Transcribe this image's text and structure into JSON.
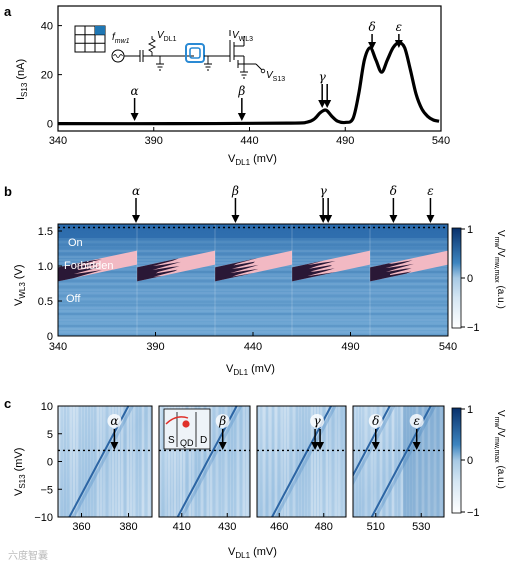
{
  "panels": {
    "a": "a",
    "b": "b",
    "c": "c"
  },
  "panel_a": {
    "chart_data": {
      "type": "line",
      "xlabel": "V_DL1 (mV)",
      "ylabel": "I_S13 (nA)",
      "xlim": [
        340,
        540
      ],
      "ylim": [
        -3,
        48
      ],
      "xticks": [
        "340",
        "390",
        "440",
        "490",
        "540"
      ],
      "yticks": [
        "0",
        "20",
        "40"
      ],
      "x": [
        340,
        400,
        460,
        470,
        474,
        477,
        480,
        483,
        486,
        490,
        494,
        497,
        500,
        503,
        506,
        509,
        512,
        515,
        518,
        521,
        524,
        527,
        530,
        533,
        536,
        539
      ],
      "y": [
        0,
        0,
        0.2,
        0.6,
        2,
        4.5,
        5.5,
        3,
        1,
        0.5,
        2,
        12,
        26,
        31,
        26,
        21,
        26,
        31,
        33,
        31,
        22,
        12,
        6,
        3,
        1.5,
        1
      ],
      "peaks": [
        {
          "label": "α",
          "x": 380
        },
        {
          "label": "β",
          "x": 436
        },
        {
          "label": "γ",
          "x": 479
        },
        {
          "label": "δ",
          "x": 504
        },
        {
          "label": "ε",
          "x": 518
        }
      ]
    },
    "circuit": {
      "f_label": "f",
      "f_sub": "mw1",
      "vdl_label": "V",
      "vdl_sub": "DL1",
      "vwl_label": "V",
      "vwl_sub": "WL3",
      "vs_label": "V",
      "vs_sub": "S13"
    }
  },
  "panel_b": {
    "chart_data": {
      "type": "heatmap",
      "xlabel": "V_DL1 (mV)",
      "ylabel": "V_WL3 (V)",
      "xlim": [
        340,
        540
      ],
      "ylim": [
        0,
        1.6
      ],
      "xticks": [
        "340",
        "390",
        "440",
        "490",
        "540"
      ],
      "yticks": [
        "0",
        "0.5",
        "1.0",
        "1.5"
      ],
      "region_labels": [
        "On",
        "Forbidden",
        "Off"
      ],
      "dotted_line_y": 1.55,
      "colorbar": {
        "label": "V_mw/V_mw,max (a.u.)",
        "ticks": [
          "1",
          "0",
          "−1"
        ],
        "range": [
          -1,
          1
        ]
      },
      "peaks": [
        {
          "label": "α",
          "x": 380
        },
        {
          "label": "β",
          "x": 431
        },
        {
          "label": "γ",
          "x": 477
        },
        {
          "label": "δ",
          "x": 512
        },
        {
          "label": "ε",
          "x": 531
        }
      ]
    }
  },
  "panel_c": {
    "chart_data": {
      "type": "heatmap",
      "ylabel": "V_S13 (mV)",
      "xlabel": "V_DL1 (mV)",
      "ylim": [
        -10,
        10
      ],
      "yticks": [
        "10",
        "5",
        "0",
        "−5",
        "−10"
      ],
      "dotted_line_y": 2,
      "subpanels": [
        {
          "xlim": [
            350,
            390
          ],
          "xticks": [
            "360",
            "380"
          ],
          "peaks": [
            {
              "label": "α",
              "x": 374
            }
          ]
        },
        {
          "xlim": [
            400,
            440
          ],
          "xticks": [
            "410",
            "430"
          ],
          "peaks": [
            {
              "label": "β",
              "x": 428
            }
          ]
        },
        {
          "xlim": [
            450,
            490
          ],
          "xticks": [
            "460",
            "480"
          ],
          "peaks": [
            {
              "label": "γ",
              "x": 477
            }
          ]
        },
        {
          "xlim": [
            500,
            540
          ],
          "xticks": [
            "510",
            "530"
          ],
          "peaks": [
            {
              "label": "δ",
              "x": 510
            },
            {
              "label": "ε",
              "x": 528
            }
          ]
        }
      ],
      "inset_labels": [
        "S",
        "QD",
        "D"
      ],
      "colorbar": {
        "label": "V_mw/V_mw,max (a.u.)",
        "ticks": [
          "1",
          "0",
          "−1"
        ],
        "range": [
          -1,
          1
        ]
      }
    }
  },
  "watermark": "六度智囊"
}
